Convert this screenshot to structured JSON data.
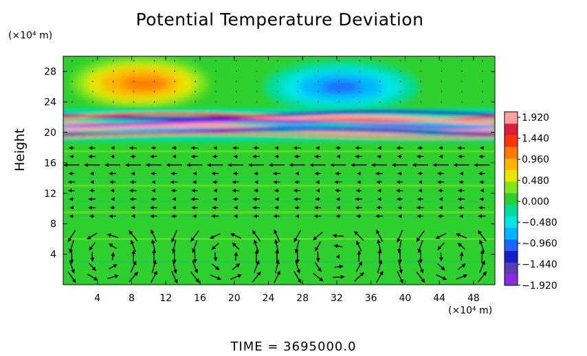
{
  "chart_data": {
    "type": "heatmap",
    "title": "Potential Temperature Deviation",
    "ylabel": "Height",
    "y_unit_label": "(×10⁴ m)",
    "x_unit_label": "(×10⁴ m)",
    "x_ticks": [
      "4",
      "8",
      "12",
      "16",
      "20",
      "24",
      "28",
      "32",
      "36",
      "40",
      "44",
      "48"
    ],
    "x_tick_values": [
      4,
      8,
      12,
      16,
      20,
      24,
      28,
      32,
      36,
      40,
      44,
      48
    ],
    "y_ticks": [
      "4",
      "8",
      "12",
      "16",
      "20",
      "24",
      "28"
    ],
    "y_tick_values": [
      4,
      8,
      12,
      16,
      20,
      24,
      28
    ],
    "xlim": [
      0,
      50.5
    ],
    "ylim": [
      0,
      30
    ],
    "colorbar": {
      "labels": [
        "1.920",
        "1.440",
        "0.960",
        "0.480",
        "0.000",
        "−0.480",
        "−0.960",
        "−1.440",
        "−1.920"
      ],
      "range": [
        -1.92,
        1.92
      ],
      "colors": [
        "#8a2be2",
        "#5a3cb4",
        "#1c1cc8",
        "#1e64ff",
        "#00b4ff",
        "#00e6e6",
        "#00dca0",
        "#2ed02e",
        "#7fe61e",
        "#e6e600",
        "#ffb400",
        "#ff7800",
        "#ff3200",
        "#dc1e3c",
        "#ffa0a0"
      ]
    },
    "features": [
      {
        "name": "warm-anomaly",
        "x": 9,
        "y": 26.5,
        "value": 1.0
      },
      {
        "name": "cold-anomaly",
        "x": 32.5,
        "y": 26.0,
        "value": -1.0
      },
      {
        "name": "oscillating-layer",
        "y_range": [
          19,
          23
        ],
        "value_range": [
          -1.92,
          1.92
        ]
      }
    ],
    "vector_field": {
      "description": "wind vectors",
      "lower_cells_x": [
        5,
        19,
        32,
        45.5
      ],
      "jet_height": 15.5
    }
  },
  "footer": {
    "time_label": "TIME  =  3695000.0"
  }
}
